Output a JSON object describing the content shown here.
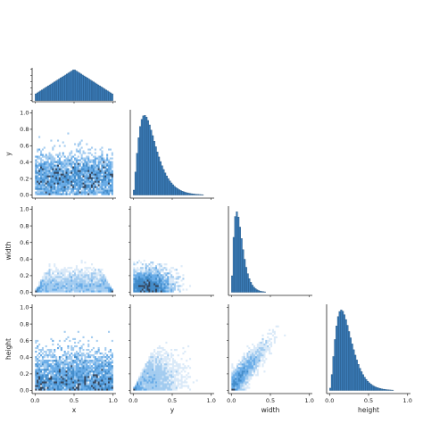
{
  "chart_data": {
    "type": "pairplot",
    "diag_kind": "hist",
    "offdiag_kind": "hexbin-density",
    "corner": true,
    "variables": [
      "x",
      "y",
      "width",
      "height"
    ],
    "axis_labels": {
      "x": "x",
      "y": "y",
      "width": "width",
      "height": "height"
    },
    "ticks": {
      "row": [
        "0.0",
        "0.2",
        "0.4",
        "0.6",
        "0.8",
        "1.0"
      ],
      "col": [
        "0.0",
        "0.5",
        "1.0"
      ]
    },
    "axis_range": [
      0,
      1
    ],
    "colors": {
      "hist_fill": "#3b7cb8",
      "hist_edge": "#1f4e79",
      "density_low": "#dbeaf8",
      "density_mid": "#3e8fd6",
      "density_high": "#2b3b52"
    },
    "histograms": {
      "x": {
        "bin_width": 0.02,
        "shape": "triangular",
        "peak": 0.5,
        "range": [
          0.0,
          1.0
        ]
      },
      "y": {
        "bin_width": 0.02,
        "shape": "right-skewed",
        "peak": 0.22,
        "range": [
          0.0,
          1.0
        ]
      },
      "width": {
        "bin_width": 0.02,
        "shape": "right-skewed",
        "peak": 0.07,
        "range": [
          0.0,
          0.9
        ]
      },
      "height": {
        "bin_width": 0.02,
        "shape": "right-skewed",
        "peak": 0.15,
        "range": [
          0.0,
          1.0
        ]
      }
    },
    "panels": [
      {
        "row": "y",
        "col": "x",
        "density_center": [
          0.5,
          0.22
        ]
      },
      {
        "row": "width",
        "col": "x",
        "density_center": [
          0.5,
          0.1
        ],
        "envelope": "width <= 2*min(x, 1-x)"
      },
      {
        "row": "width",
        "col": "y",
        "density_center": [
          0.22,
          0.1
        ]
      },
      {
        "row": "height",
        "col": "x",
        "density_center": [
          0.5,
          0.15
        ]
      },
      {
        "row": "height",
        "col": "y",
        "density_center": [
          0.2,
          0.15
        ],
        "envelope": "height <= 2*min(y, 1-y)"
      },
      {
        "row": "height",
        "col": "width",
        "density_center": [
          0.1,
          0.15
        ],
        "correlation": "positive"
      }
    ]
  }
}
